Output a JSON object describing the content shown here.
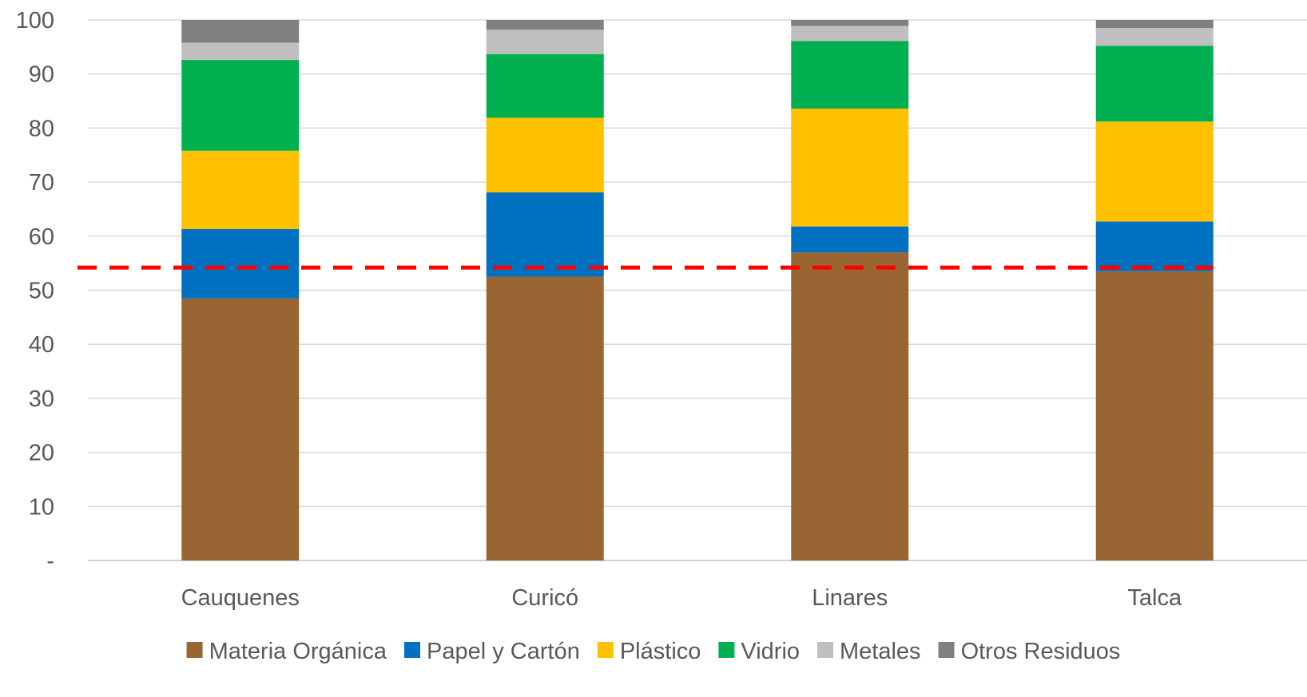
{
  "chart_data": {
    "type": "bar",
    "stacked": true,
    "categories": [
      "Cauquenes",
      "Curicó",
      "Linares",
      "Talca"
    ],
    "series": [
      {
        "name": "Materia Orgánica",
        "color": "#996633",
        "values": [
          48.5,
          52.5,
          57.0,
          53.5
        ]
      },
      {
        "name": "Papel y Cartón",
        "color": "#0070C0",
        "values": [
          12.8,
          15.6,
          4.8,
          9.2
        ]
      },
      {
        "name": "Plástico",
        "color": "#FFC000",
        "values": [
          14.5,
          13.8,
          21.8,
          18.5
        ]
      },
      {
        "name": "Vidrio",
        "color": "#00B050",
        "values": [
          16.8,
          11.8,
          12.5,
          14.0
        ]
      },
      {
        "name": "Metales",
        "color": "#BFBFBF",
        "values": [
          3.2,
          4.5,
          2.8,
          3.3
        ]
      },
      {
        "name": "Otros Residuos",
        "color": "#808080",
        "values": [
          4.2,
          1.8,
          1.1,
          1.5
        ]
      }
    ],
    "reference_line": {
      "value": 54.2,
      "color": "#FF0000",
      "style": "dashed"
    },
    "y_ticks": [
      "-",
      "10",
      "20",
      "30",
      "40",
      "50",
      "60",
      "70",
      "80",
      "90",
      "100"
    ],
    "ylim": [
      0,
      100
    ],
    "grid": true,
    "legend_position": "bottom",
    "title": "",
    "xlabel": "",
    "ylabel": ""
  }
}
